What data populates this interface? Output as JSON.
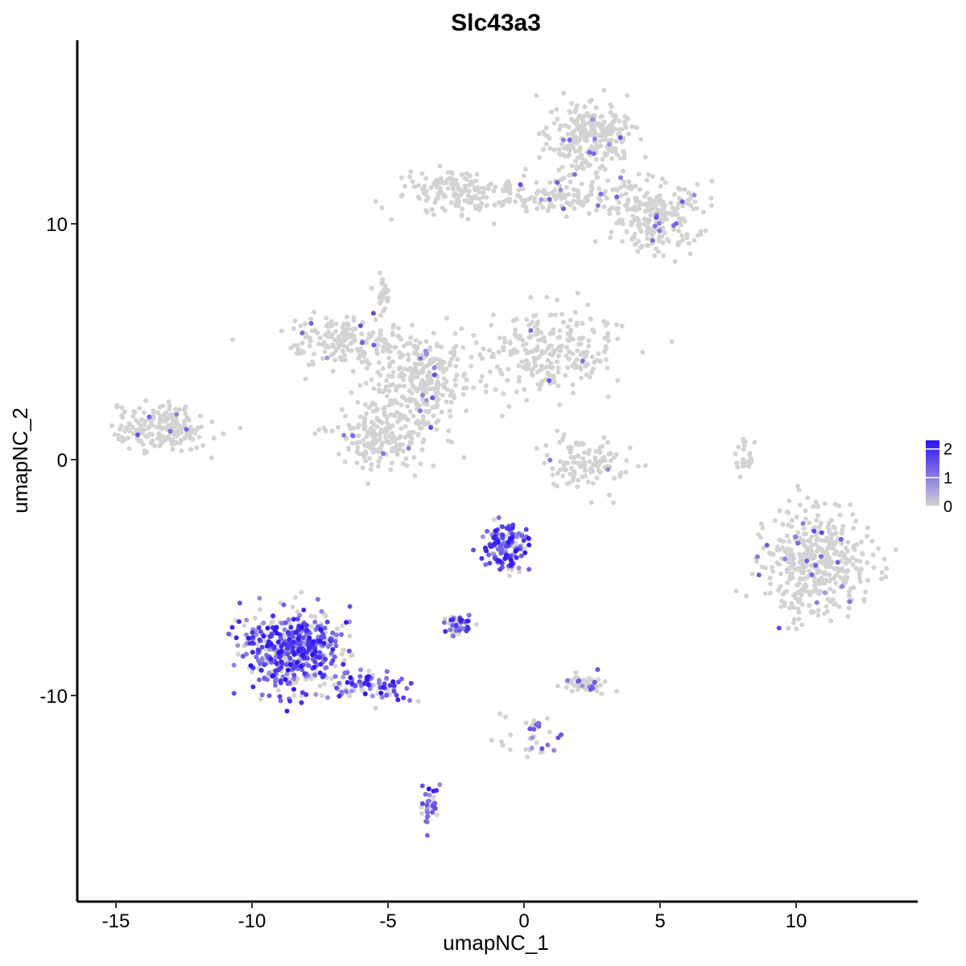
{
  "chart_data": {
    "type": "scatter",
    "title": "Slc43a3",
    "xlabel": "umapNC_1",
    "ylabel": "umapNC_2",
    "xlim": [
      -16.5,
      14.5
    ],
    "ylim": [
      -18.5,
      17.5
    ],
    "x_ticks": [
      -15,
      -10,
      -5,
      0,
      5,
      10
    ],
    "x_tick_labels": [
      "-15",
      "-10",
      "-5",
      "0",
      "5",
      "10"
    ],
    "y_ticks": [
      -10,
      0,
      10
    ],
    "y_tick_labels": [
      "-10",
      "0",
      "10"
    ],
    "grid": false,
    "legend": {
      "placement": "right",
      "type": "colorbar",
      "range": [
        0,
        2.3
      ],
      "ticks": [
        0,
        1,
        2
      ],
      "tick_labels": [
        "0",
        "1",
        "2"
      ],
      "colors": [
        "#d3d3d3",
        "#2b12f5"
      ]
    },
    "point_color_low": "#d3d3d3",
    "point_color_high": "#2b12f5",
    "clusters": [
      {
        "label": "top-right-upper",
        "cx": 2.3,
        "cy": 13.8,
        "sx": 0.9,
        "sy": 1.0,
        "n": 260,
        "expr": 0.03
      },
      {
        "label": "top-bridge",
        "cx": 0.2,
        "cy": 11.2,
        "sx": 2.8,
        "sy": 0.5,
        "n": 220,
        "expr": 0.03
      },
      {
        "label": "top-right-lower",
        "cx": 4.8,
        "cy": 10.2,
        "sx": 1.1,
        "sy": 1.0,
        "n": 220,
        "expr": 0.05
      },
      {
        "label": "top-left-arm",
        "cx": -2.7,
        "cy": 11.4,
        "sx": 0.7,
        "sy": 0.6,
        "n": 90,
        "expr": 0.02
      },
      {
        "label": "middle-left-arm",
        "cx": -6.5,
        "cy": 5.0,
        "sx": 1.4,
        "sy": 0.7,
        "n": 170,
        "expr": 0.02
      },
      {
        "label": "middle-right-arm",
        "cx": 0.8,
        "cy": 4.5,
        "sx": 1.7,
        "sy": 1.1,
        "n": 250,
        "expr": 0.02
      },
      {
        "label": "middle-center",
        "cx": -3.7,
        "cy": 3.5,
        "sx": 1.1,
        "sy": 1.1,
        "n": 240,
        "expr": 0.03
      },
      {
        "label": "middle-lower-lobe",
        "cx": -5.0,
        "cy": 1.1,
        "sx": 1.2,
        "sy": 1.0,
        "n": 220,
        "expr": 0.02
      },
      {
        "label": "middle-stem",
        "cx": -5.2,
        "cy": 7.0,
        "sx": 0.2,
        "sy": 0.5,
        "n": 25,
        "expr": 0.02
      },
      {
        "label": "left-island",
        "cx": -13.3,
        "cy": 1.3,
        "sx": 1.0,
        "sy": 0.6,
        "n": 200,
        "expr": 0.02
      },
      {
        "label": "small-arc",
        "cx": 2.4,
        "cy": -0.1,
        "sx": 1.0,
        "sy": 0.7,
        "n": 120,
        "expr": 0.03
      },
      {
        "label": "right-cluster",
        "cx": 10.8,
        "cy": -4.5,
        "sx": 1.2,
        "sy": 1.4,
        "n": 420,
        "expr": 0.03
      },
      {
        "label": "right-thin-strip",
        "cx": 8.1,
        "cy": 0.2,
        "sx": 0.2,
        "sy": 0.6,
        "n": 25,
        "expr": 0.0
      },
      {
        "label": "big-expressing-cluster",
        "cx": -8.6,
        "cy": -8.1,
        "sx": 1.1,
        "sy": 1.1,
        "n": 520,
        "expr": 0.65
      },
      {
        "label": "expressing-tail",
        "cx": -5.6,
        "cy": -9.6,
        "sx": 0.9,
        "sy": 0.4,
        "n": 90,
        "expr": 0.55
      },
      {
        "label": "upper-expressing-cluster",
        "cx": -0.7,
        "cy": -3.8,
        "sx": 0.5,
        "sy": 0.6,
        "n": 150,
        "expr": 0.7
      },
      {
        "label": "small-expressing-blob",
        "cx": -2.5,
        "cy": -7.0,
        "sx": 0.3,
        "sy": 0.25,
        "n": 45,
        "expr": 0.6
      },
      {
        "label": "bottom-strand",
        "cx": -3.5,
        "cy": -14.6,
        "sx": 0.2,
        "sy": 0.5,
        "n": 35,
        "expr": 0.6
      },
      {
        "label": "small-grey-blob",
        "cx": 2.3,
        "cy": -9.5,
        "sx": 0.5,
        "sy": 0.3,
        "n": 55,
        "expr": 0.1
      },
      {
        "label": "lower-branch",
        "cx": 0.2,
        "cy": -11.6,
        "sx": 0.8,
        "sy": 0.7,
        "n": 35,
        "expr": 0.3
      }
    ]
  }
}
